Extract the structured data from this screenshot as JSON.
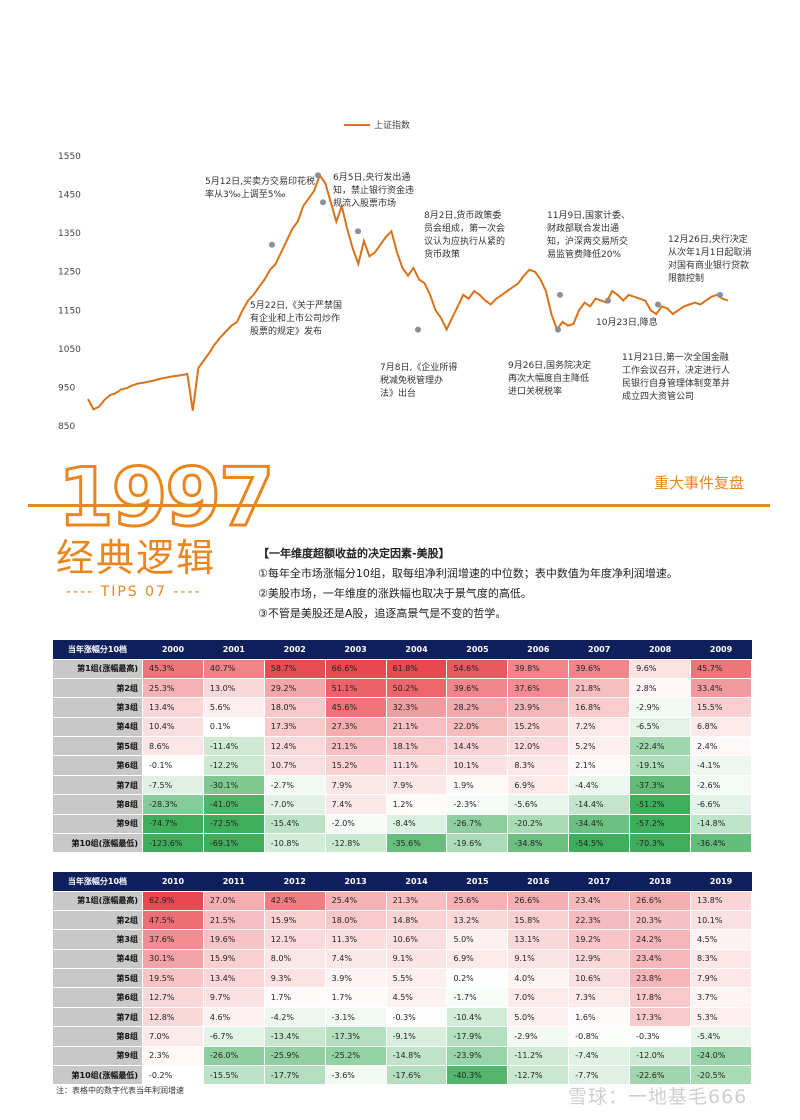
{
  "chart_data": {
    "type": "line",
    "legend": "上证指数",
    "y_ticks": [
      1550,
      1450,
      1350,
      1250,
      1150,
      1050,
      950,
      850
    ],
    "ylim": [
      850,
      1550
    ],
    "values": [
      920,
      893,
      900,
      918,
      930,
      935,
      945,
      948,
      955,
      960,
      962,
      965,
      968,
      972,
      975,
      978,
      980,
      982,
      985,
      890,
      1000,
      1020,
      1040,
      1062,
      1080,
      1095,
      1110,
      1120,
      1150,
      1175,
      1190,
      1210,
      1230,
      1255,
      1270,
      1300,
      1330,
      1360,
      1380,
      1420,
      1440,
      1460,
      1500,
      1480,
      1430,
      1380,
      1420,
      1360,
      1310,
      1270,
      1330,
      1290,
      1300,
      1320,
      1340,
      1355,
      1300,
      1260,
      1240,
      1260,
      1230,
      1220,
      1190,
      1150,
      1130,
      1100,
      1130,
      1160,
      1190,
      1180,
      1200,
      1190,
      1175,
      1165,
      1180,
      1190,
      1200,
      1210,
      1220,
      1240,
      1255,
      1250,
      1230,
      1200,
      1140,
      1100,
      1120,
      1110,
      1115,
      1150,
      1170,
      1160,
      1180,
      1175,
      1170,
      1200,
      1190,
      1175,
      1190,
      1185,
      1180,
      1175,
      1150,
      1140,
      1160,
      1155,
      1140,
      1150,
      1160,
      1165,
      1170,
      1165,
      1175,
      1185,
      1190,
      1180,
      1175
    ],
    "points": [
      {
        "label": "5月12日",
        "value": 1500
      },
      {
        "label": "6月5日",
        "value": 1430
      },
      {
        "label": "8月2日",
        "value": 1355
      },
      {
        "label": "7月8日",
        "value": 1100
      },
      {
        "label": "5月22日",
        "value": 1320
      },
      {
        "label": "11月9日",
        "value": 1190
      },
      {
        "label": "9月26日",
        "value": 1100
      },
      {
        "label": "10月23日",
        "value": 1175
      },
      {
        "label": "12月26日",
        "value": 1190
      },
      {
        "label": "11月21日",
        "value": 1165
      }
    ],
    "annotations": [
      {
        "id": "a1",
        "lines": [
          "5月12日,买卖方交易印花税",
          "率从3‰上调至5‰"
        ]
      },
      {
        "id": "a2",
        "lines": [
          "6月5日,央行发出通",
          "知，禁止银行资金违",
          "规流入股票市场"
        ]
      },
      {
        "id": "a3",
        "lines": [
          "8月2日,货币政策委",
          "员会组成，第一次会",
          "议认为应执行从紧的",
          "货币政策"
        ]
      },
      {
        "id": "a4",
        "lines": [
          "11月9日,国家计委、",
          "财政部联合发出通",
          "知，沪深两交易所交",
          "易监管费降低20%"
        ]
      },
      {
        "id": "a5",
        "lines": [
          "12月26日,央行决定",
          "从次年1月1日起取消",
          "对国有商业银行贷款",
          "限额控制"
        ]
      },
      {
        "id": "a6",
        "lines": [
          "5月22日,《关于严禁国",
          "有企业和上市公司炒作",
          "股票的规定》发布"
        ]
      },
      {
        "id": "a7",
        "lines": [
          "7月8日,《企业所得",
          "税减免税管理办",
          "法》出台"
        ]
      },
      {
        "id": "a8",
        "lines": [
          "9月26日,国务院决定",
          "再次大幅度自主降低",
          "进口关税税率"
        ]
      },
      {
        "id": "a9",
        "lines": [
          "10月23日,降息"
        ]
      },
      {
        "id": "a10",
        "lines": [
          "11月21日,第一次全国金融",
          "工作会议召开，决定进行人",
          "民银行自身管理体制变革并",
          "成立四大资管公司"
        ]
      }
    ]
  },
  "header": {
    "year": "1997",
    "title": "经典逻辑",
    "tips": "---- TIPS 07 ----",
    "events_label": "重大事件复盘"
  },
  "notes": {
    "title": "【一年维度超额收益的决定因素-美股】",
    "items": [
      "①每年全市场涨幅分10组，取每组净利润增速的中位数；表中数值为年度净利润增速。",
      "②美股市场，一年维度的涨跌幅也取决于景气度的高低。",
      "③不管是美股还是A股，追逐高景气是不变的哲学。"
    ]
  },
  "row_labels": [
    "第1组(涨幅最高)",
    "第2组",
    "第3组",
    "第4组",
    "第5组",
    "第6组",
    "第7组",
    "第8组",
    "第9组",
    "第10组(涨幅最低)"
  ],
  "table1": {
    "corner": "当年涨幅分10档",
    "years": [
      "2000",
      "2001",
      "2002",
      "2003",
      "2004",
      "2005",
      "2006",
      "2007",
      "2008",
      "2009"
    ],
    "rows": [
      [
        "45.3%",
        "40.7%",
        "58.7%",
        "66.6%",
        "61.8%",
        "54.6%",
        "39.8%",
        "39.6%",
        "9.6%",
        "45.7%"
      ],
      [
        "25.3%",
        "13.0%",
        "29.2%",
        "51.1%",
        "50.2%",
        "39.6%",
        "37.6%",
        "21.8%",
        "2.8%",
        "33.4%"
      ],
      [
        "13.4%",
        "5.6%",
        "18.0%",
        "45.6%",
        "32.3%",
        "28.2%",
        "23.9%",
        "16.8%",
        "-2.9%",
        "15.5%"
      ],
      [
        "10.4%",
        "0.1%",
        "17.3%",
        "27.3%",
        "21.1%",
        "22.0%",
        "15.2%",
        "7.2%",
        "-6.5%",
        "6.8%"
      ],
      [
        "8.6%",
        "-11.4%",
        "12.4%",
        "21.1%",
        "18.1%",
        "14.4%",
        "12.0%",
        "5.2%",
        "-22.4%",
        "2.4%"
      ],
      [
        "-0.1%",
        "-12.2%",
        "10.7%",
        "15.2%",
        "11.1%",
        "10.1%",
        "8.3%",
        "2.1%",
        "-19.1%",
        "-4.1%"
      ],
      [
        "-7.5%",
        "-30.1%",
        "-2.7%",
        "7.9%",
        "7.9%",
        "1.9%",
        "6.9%",
        "-4.4%",
        "-37.3%",
        "-2.6%"
      ],
      [
        "-28.3%",
        "-41.0%",
        "-7.0%",
        "7.4%",
        "1.2%",
        "-2.3%",
        "-5.6%",
        "-14.4%",
        "-51.2%",
        "-6.6%"
      ],
      [
        "-74.7%",
        "-72.5%",
        "-15.4%",
        "-2.0%",
        "-8.4%",
        "-26.7%",
        "-20.2%",
        "-34.4%",
        "-57.2%",
        "-14.8%"
      ],
      [
        "-123.6%",
        "-69.1%",
        "-10.8%",
        "-12.8%",
        "-35.6%",
        "-19.6%",
        "-34.8%",
        "-54.5%",
        "-70.3%",
        "-36.4%"
      ]
    ]
  },
  "table2": {
    "corner": "当年涨幅分10档",
    "years": [
      "2010",
      "2011",
      "2012",
      "2013",
      "2014",
      "2015",
      "2016",
      "2017",
      "2018",
      "2019"
    ],
    "rows": [
      [
        "62.9%",
        "27.0%",
        "42.4%",
        "25.4%",
        "21.3%",
        "25.6%",
        "26.6%",
        "23.4%",
        "26.6%",
        "13.8%"
      ],
      [
        "47.5%",
        "21.5%",
        "15.9%",
        "18.0%",
        "14.8%",
        "13.2%",
        "15.8%",
        "22.3%",
        "20.3%",
        "10.1%"
      ],
      [
        "37.6%",
        "19.6%",
        "12.1%",
        "11.3%",
        "10.6%",
        "5.0%",
        "13.1%",
        "19.2%",
        "24.2%",
        "4.5%"
      ],
      [
        "30.1%",
        "15.9%",
        "8.0%",
        "7.4%",
        "9.1%",
        "6.9%",
        "9.1%",
        "12.9%",
        "23.4%",
        "8.3%"
      ],
      [
        "19.5%",
        "13.4%",
        "9.3%",
        "3.9%",
        "5.5%",
        "0.2%",
        "4.0%",
        "10.6%",
        "23.8%",
        "7.9%"
      ],
      [
        "12.7%",
        "9.7%",
        "1.7%",
        "1.7%",
        "4.5%",
        "-1.7%",
        "7.0%",
        "7.3%",
        "17.8%",
        "3.7%"
      ],
      [
        "12.8%",
        "4.6%",
        "-4.2%",
        "-3.1%",
        "-0.3%",
        "-10.4%",
        "5.0%",
        "1.6%",
        "17.3%",
        "5.3%"
      ],
      [
        "7.0%",
        "-6.7%",
        "-13.4%",
        "-17.3%",
        "-9.1%",
        "-17.9%",
        "-2.9%",
        "-0.8%",
        "-0.3%",
        "-5.4%"
      ],
      [
        "2.3%",
        "-26.0%",
        "-25.9%",
        "-25.2%",
        "-14.8%",
        "-23.9%",
        "-11.2%",
        "-7.4%",
        "-12.0%",
        "-24.0%"
      ],
      [
        "-0.2%",
        "-15.5%",
        "-17.7%",
        "-3.6%",
        "-17.6%",
        "-40.3%",
        "-12.7%",
        "-7.7%",
        "-22.6%",
        "-20.5%"
      ]
    ]
  },
  "footnote": "注：表格中的数字代表当年利润增速",
  "watermark": "雪球：一地基毛666",
  "colors": {
    "line": "#d9731a",
    "accent": "#e9861f",
    "header": "#0f1f5c",
    "red": "#e8484f",
    "green": "#3fae5b",
    "marker": "#8a8f99"
  }
}
